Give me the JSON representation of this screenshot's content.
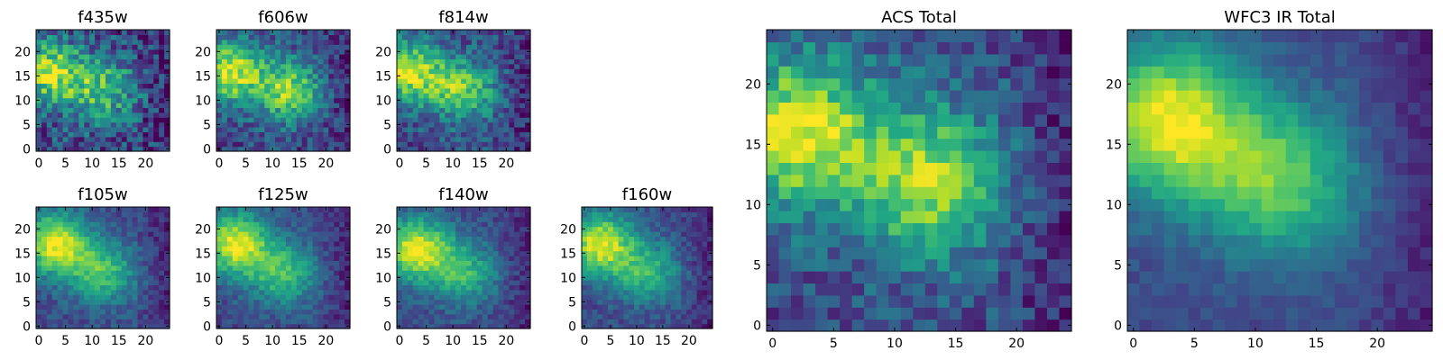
{
  "chart_data": [
    {
      "type": "heatmap",
      "title": "f435w",
      "x_ticks": [
        "0",
        "5",
        "10",
        "15",
        "20"
      ],
      "y_ticks": [
        "0",
        "5",
        "10",
        "15",
        "20"
      ],
      "xlim": [
        -0.5,
        24.5
      ],
      "ylim": [
        -0.5,
        24.5
      ],
      "grid": false,
      "colormap": "viridis",
      "peaks": [
        {
          "x": 2,
          "y": 16,
          "level": 0.85
        },
        {
          "x": 12,
          "y": 12,
          "level": 0.7
        }
      ],
      "noise": 0.45
    },
    {
      "type": "heatmap",
      "title": "f606w",
      "x_ticks": [
        "0",
        "5",
        "10",
        "15",
        "20"
      ],
      "y_ticks": [
        "0",
        "5",
        "10",
        "15",
        "20"
      ],
      "xlim": [
        -0.5,
        24.5
      ],
      "ylim": [
        -0.5,
        24.5
      ],
      "grid": false,
      "colormap": "viridis",
      "peaks": [
        {
          "x": 2,
          "y": 16,
          "level": 0.9
        },
        {
          "x": 13,
          "y": 12,
          "level": 0.8
        }
      ],
      "noise": 0.35
    },
    {
      "type": "heatmap",
      "title": "f814w",
      "x_ticks": [
        "0",
        "5",
        "10",
        "15",
        "20"
      ],
      "y_ticks": [
        "0",
        "5",
        "10",
        "15",
        "20"
      ],
      "xlim": [
        -0.5,
        24.5
      ],
      "ylim": [
        -0.5,
        24.5
      ],
      "grid": false,
      "colormap": "viridis",
      "peaks": [
        {
          "x": 2,
          "y": 16,
          "level": 0.9
        },
        {
          "x": 12,
          "y": 12,
          "level": 0.75
        }
      ],
      "noise": 0.35
    },
    {
      "type": "heatmap",
      "title": "f105w",
      "x_ticks": [
        "0",
        "5",
        "10",
        "15",
        "20"
      ],
      "y_ticks": [
        "0",
        "5",
        "10",
        "15",
        "20"
      ],
      "xlim": [
        -0.5,
        24.5
      ],
      "ylim": [
        -0.5,
        24.5
      ],
      "grid": false,
      "colormap": "viridis",
      "peaks": [
        {
          "x": 3,
          "y": 17,
          "level": 0.95
        },
        {
          "x": 12,
          "y": 11,
          "level": 0.7
        }
      ],
      "noise": 0.2
    },
    {
      "type": "heatmap",
      "title": "f125w",
      "x_ticks": [
        "0",
        "5",
        "10",
        "15",
        "20"
      ],
      "y_ticks": [
        "0",
        "5",
        "10",
        "15",
        "20"
      ],
      "xlim": [
        -0.5,
        24.5
      ],
      "ylim": [
        -0.5,
        24.5
      ],
      "grid": false,
      "colormap": "viridis",
      "peaks": [
        {
          "x": 3,
          "y": 17,
          "level": 0.95
        },
        {
          "x": 12,
          "y": 11,
          "level": 0.7
        }
      ],
      "noise": 0.2
    },
    {
      "type": "heatmap",
      "title": "f140w",
      "x_ticks": [
        "0",
        "5",
        "10",
        "15",
        "20"
      ],
      "y_ticks": [
        "0",
        "5",
        "10",
        "15",
        "20"
      ],
      "xlim": [
        -0.5,
        24.5
      ],
      "ylim": [
        -0.5,
        24.5
      ],
      "grid": false,
      "colormap": "viridis",
      "peaks": [
        {
          "x": 3,
          "y": 16,
          "level": 0.95
        },
        {
          "x": 12,
          "y": 11,
          "level": 0.65
        }
      ],
      "noise": 0.2
    },
    {
      "type": "heatmap",
      "title": "f160w",
      "x_ticks": [
        "0",
        "5",
        "10",
        "15",
        "20"
      ],
      "y_ticks": [
        "0",
        "5",
        "10",
        "15",
        "20"
      ],
      "xlim": [
        -0.5,
        24.5
      ],
      "ylim": [
        -0.5,
        24.5
      ],
      "grid": false,
      "colormap": "viridis",
      "peaks": [
        {
          "x": 3,
          "y": 17,
          "level": 0.95
        },
        {
          "x": 12,
          "y": 11,
          "level": 0.65
        }
      ],
      "noise": 0.2
    },
    {
      "type": "heatmap",
      "title": "ACS Total",
      "x_ticks": [
        "0",
        "5",
        "10",
        "15",
        "20"
      ],
      "y_ticks": [
        "0",
        "5",
        "10",
        "15",
        "20"
      ],
      "xlim": [
        -0.5,
        24.5
      ],
      "ylim": [
        -0.5,
        24.5
      ],
      "grid": false,
      "colormap": "viridis",
      "peaks": [
        {
          "x": 2,
          "y": 16,
          "level": 0.95
        },
        {
          "x": 13,
          "y": 12,
          "level": 0.85
        }
      ],
      "noise": 0.3
    },
    {
      "type": "heatmap",
      "title": "WFC3 IR Total",
      "x_ticks": [
        "0",
        "5",
        "10",
        "15",
        "20"
      ],
      "y_ticks": [
        "0",
        "5",
        "10",
        "15",
        "20"
      ],
      "xlim": [
        -0.5,
        24.5
      ],
      "ylim": [
        -0.5,
        24.5
      ],
      "grid": false,
      "colormap": "viridis",
      "peaks": [
        {
          "x": 3,
          "y": 17,
          "level": 0.97
        },
        {
          "x": 12,
          "y": 12,
          "level": 0.75
        }
      ],
      "noise": 0.12
    }
  ]
}
